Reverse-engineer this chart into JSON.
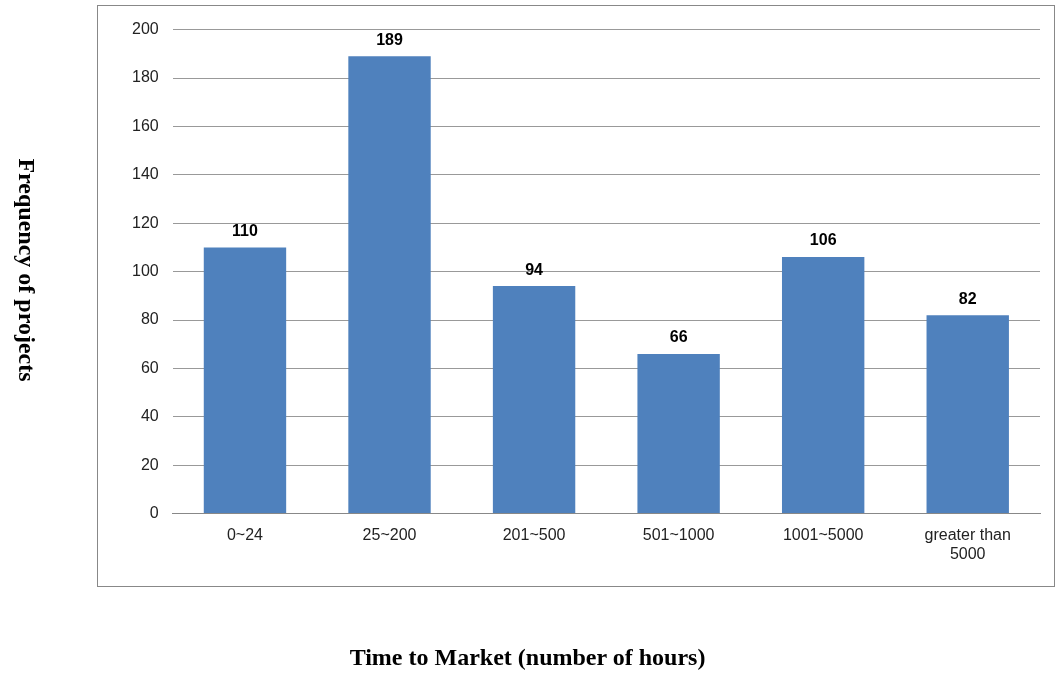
{
  "chart_data": {
    "type": "bar",
    "xlabel": "Time to Market (number of hours)",
    "ylabel": "Frequency of projects",
    "categories": [
      "0~24",
      "25~200",
      "201~500",
      "501~1000",
      "1001~5000",
      "greater than 5000"
    ],
    "values": [
      110,
      189,
      94,
      66,
      106,
      82
    ],
    "color": "#4f81bd",
    "ylim": [
      0,
      200
    ],
    "yticks": [
      0,
      20,
      40,
      60,
      80,
      100,
      120,
      140,
      160,
      180,
      200
    ],
    "grid": "y",
    "legend": false,
    "data_labels": true
  }
}
